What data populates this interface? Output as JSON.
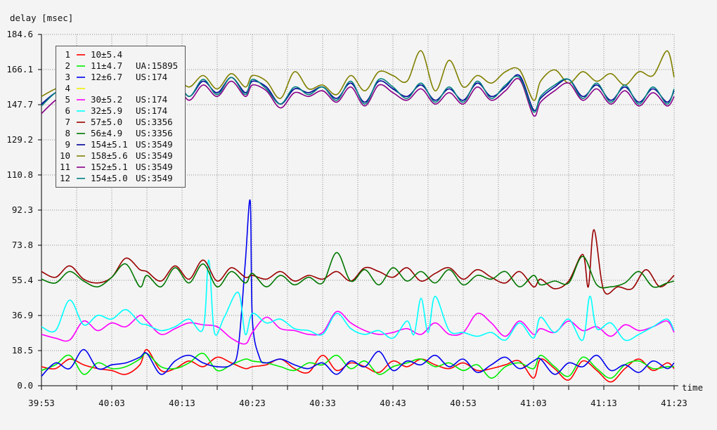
{
  "chart_data": {
    "type": "line",
    "ylabel": "delay [msec]",
    "xlabel": "time",
    "ylim": [
      0,
      184.6
    ],
    "y_ticks": [
      "0.0",
      "18.5",
      "36.9",
      "55.4",
      "73.8",
      "92.3",
      "110.8",
      "129.2",
      "147.7",
      "166.1",
      "184.6"
    ],
    "x_ticks": [
      "39:53",
      "40:03",
      "40:13",
      "40:23",
      "40:33",
      "40:43",
      "40:53",
      "41:03",
      "41:13",
      "41:23"
    ],
    "x_range_seconds": [
      0,
      90
    ],
    "grid": true,
    "legend_position": "top-left",
    "series": [
      {
        "id": "1",
        "stat": "10±5.4",
        "origin": "",
        "color": "#ff0000",
        "x": [
          0,
          2,
          4,
          6,
          8,
          10,
          12,
          14,
          15,
          17,
          19,
          21,
          23,
          25,
          27,
          29,
          30,
          32,
          34,
          36,
          38,
          40,
          42,
          44,
          46,
          48,
          50,
          52,
          54,
          56,
          58,
          60,
          62,
          64,
          66,
          68,
          70,
          71,
          73,
          75,
          77,
          79,
          81,
          83,
          85,
          87,
          89,
          90
        ],
        "values": [
          10,
          9,
          14,
          11,
          9,
          8,
          6,
          11,
          19,
          8,
          9,
          13,
          10,
          15,
          12,
          9,
          10,
          11,
          14,
          9,
          7,
          16,
          8,
          12,
          10,
          7,
          13,
          10,
          14,
          11,
          9,
          12,
          8,
          9,
          11,
          13,
          4,
          14,
          9,
          3,
          13,
          8,
          2,
          9,
          14,
          8,
          12,
          9
        ]
      },
      {
        "id": "2",
        "stat": "11±4.7",
        "origin": "UA:15895",
        "color": "#00ee00",
        "x": [
          0,
          2,
          4,
          6,
          8,
          10,
          12,
          14,
          15,
          17,
          19,
          21,
          23,
          25,
          27,
          29,
          30,
          32,
          34,
          36,
          38,
          40,
          42,
          44,
          46,
          48,
          50,
          52,
          54,
          56,
          58,
          60,
          62,
          64,
          66,
          68,
          70,
          71,
          73,
          75,
          77,
          79,
          81,
          83,
          85,
          87,
          89,
          90
        ],
        "values": [
          8,
          11,
          16,
          6,
          12,
          9,
          10,
          14,
          17,
          10,
          9,
          12,
          17,
          8,
          11,
          14,
          13,
          12,
          10,
          8,
          12,
          11,
          16,
          9,
          13,
          6,
          10,
          12,
          14,
          10,
          12,
          8,
          11,
          4,
          10,
          12,
          9,
          16,
          10,
          5,
          15,
          9,
          4,
          11,
          13,
          9,
          10,
          10
        ]
      },
      {
        "id": "3",
        "stat": "12±6.7",
        "origin": "US:174",
        "color": "#0000ee",
        "x": [
          0,
          2,
          4,
          6,
          8,
          10,
          12,
          14,
          15,
          17,
          19,
          21,
          23,
          25,
          27,
          28,
          29,
          29.7,
          30,
          31,
          32,
          34,
          36,
          38,
          40,
          42,
          44,
          46,
          48,
          50,
          52,
          54,
          56,
          58,
          60,
          62,
          64,
          66,
          68,
          70,
          71,
          73,
          75,
          77,
          79,
          81,
          83,
          85,
          87,
          89,
          90
        ],
        "values": [
          5,
          12,
          9,
          19,
          9,
          11,
          12,
          15,
          17,
          6,
          13,
          16,
          12,
          10,
          11,
          20,
          65,
          97,
          35,
          15,
          12,
          14,
          11,
          9,
          12,
          6,
          13,
          10,
          18,
          8,
          13,
          11,
          16,
          10,
          14,
          7,
          11,
          15,
          9,
          13,
          14,
          6,
          12,
          10,
          16,
          8,
          11,
          7,
          13,
          9,
          12
        ]
      },
      {
        "id": "4",
        "stat": "",
        "origin": "",
        "color": "#eeee00",
        "x": [],
        "values": []
      },
      {
        "id": "5",
        "stat": "30±5.2",
        "origin": "US:174",
        "color": "#ff00ff",
        "x": [
          0,
          2,
          4,
          6,
          8,
          10,
          12,
          14,
          15,
          17,
          19,
          21,
          23,
          25,
          27,
          29,
          30,
          32,
          34,
          36,
          38,
          40,
          42,
          44,
          46,
          48,
          50,
          52,
          54,
          56,
          58,
          60,
          62,
          64,
          66,
          68,
          70,
          71,
          73,
          75,
          77,
          79,
          81,
          83,
          85,
          87,
          89,
          90
        ],
        "values": [
          27,
          25,
          24,
          34,
          29,
          33,
          31,
          37,
          34,
          27,
          30,
          33,
          32,
          31,
          25,
          22,
          28,
          36,
          30,
          29,
          27,
          28,
          39,
          33,
          29,
          27,
          28,
          30,
          27,
          33,
          27,
          28,
          38,
          33,
          26,
          34,
          27,
          30,
          28,
          34,
          29,
          31,
          26,
          32,
          29,
          31,
          34,
          28
        ]
      },
      {
        "id": "6",
        "stat": "32±5.9",
        "origin": "US:174",
        "color": "#00ffff",
        "x": [
          0,
          2,
          4,
          6,
          8,
          10,
          12,
          14,
          15,
          17,
          19,
          21,
          23,
          23.8,
          24.6,
          26,
          28,
          29,
          30,
          32,
          34,
          36,
          38,
          40,
          42,
          44,
          46,
          48,
          50,
          52,
          53,
          54,
          55,
          56,
          58,
          60,
          62,
          64,
          66,
          68,
          70,
          71,
          73,
          75,
          77,
          78,
          79,
          81,
          83,
          85,
          87,
          89,
          90
        ],
        "values": [
          31,
          29,
          45,
          32,
          37,
          35,
          40,
          33,
          32,
          29,
          31,
          35,
          30,
          66,
          28,
          36,
          49,
          27,
          38,
          33,
          35,
          30,
          29,
          27,
          38,
          30,
          27,
          29,
          25,
          34,
          27,
          46,
          28,
          47,
          29,
          28,
          26,
          28,
          24,
          33,
          25,
          36,
          28,
          35,
          24,
          47,
          30,
          33,
          24,
          27,
          31,
          35,
          29
        ]
      },
      {
        "id": "7",
        "stat": "57±5.0",
        "origin": "US:3356",
        "color": "#990000",
        "x": [
          0,
          2,
          4,
          6,
          8,
          10,
          12,
          14,
          15,
          17,
          19,
          21,
          23,
          25,
          27,
          29,
          30,
          32,
          34,
          36,
          38,
          40,
          42,
          44,
          46,
          48,
          50,
          52,
          54,
          56,
          58,
          60,
          62,
          64,
          66,
          68,
          70,
          71,
          73,
          75,
          77,
          77.8,
          78.6,
          80,
          82,
          84,
          86,
          88,
          90
        ],
        "values": [
          60,
          57,
          63,
          56,
          54,
          57,
          67,
          61,
          60,
          55,
          63,
          56,
          66,
          55,
          62,
          57,
          58,
          56,
          60,
          55,
          58,
          56,
          60,
          55,
          62,
          60,
          57,
          62,
          55,
          59,
          62,
          56,
          61,
          57,
          54,
          60,
          52,
          56,
          51,
          55,
          69,
          52,
          82,
          50,
          52,
          51,
          61,
          52,
          58
        ]
      },
      {
        "id": "8",
        "stat": "56±4.9",
        "origin": "US:3356",
        "color": "#007700",
        "x": [
          0,
          2,
          4,
          6,
          8,
          10,
          12,
          14,
          15,
          17,
          19,
          21,
          23,
          25,
          27,
          29,
          30,
          32,
          34,
          36,
          38,
          40,
          42,
          44,
          46,
          48,
          50,
          52,
          54,
          56,
          58,
          60,
          62,
          64,
          66,
          68,
          70,
          71,
          73,
          75,
          77,
          79,
          81,
          83,
          85,
          87,
          89,
          90
        ],
        "values": [
          56,
          54,
          60,
          55,
          52,
          57,
          64,
          52,
          58,
          52,
          62,
          54,
          64,
          52,
          60,
          54,
          59,
          52,
          58,
          53,
          57,
          54,
          70,
          55,
          61,
          53,
          62,
          55,
          60,
          54,
          61,
          53,
          58,
          56,
          60,
          52,
          58,
          53,
          55,
          54,
          68,
          53,
          52,
          54,
          60,
          52,
          54,
          55
        ]
      },
      {
        "id": "9",
        "stat": "154±5.1",
        "origin": "US:3549",
        "color": "#000099",
        "x": [
          0,
          2,
          4,
          6,
          8,
          10,
          12,
          14,
          15,
          17,
          19,
          21,
          23,
          25,
          27,
          29,
          30,
          32,
          34,
          36,
          38,
          40,
          42,
          44,
          46,
          48,
          50,
          52,
          54,
          56,
          58,
          60,
          62,
          64,
          66,
          68,
          70,
          71,
          73,
          75,
          77,
          79,
          81,
          83,
          85,
          87,
          89,
          90
        ],
        "values": [
          148,
          154,
          156,
          151,
          155,
          150,
          158,
          152,
          154,
          148,
          160,
          152,
          160,
          154,
          162,
          154,
          160,
          157,
          148,
          156,
          154,
          157,
          151,
          159,
          149,
          160,
          156,
          152,
          158,
          150,
          156,
          150,
          159,
          152,
          157,
          163,
          145,
          151,
          157,
          161,
          152,
          158,
          150,
          157,
          149,
          156,
          149,
          155
        ]
      },
      {
        "id": "10",
        "stat": "158±5.6",
        "origin": "US:3549",
        "color": "#808000",
        "x": [
          0,
          2,
          4,
          6,
          8,
          10,
          12,
          14,
          15,
          17,
          19,
          21,
          23,
          25,
          27,
          29,
          30,
          32,
          34,
          36,
          38,
          40,
          42,
          44,
          46,
          48,
          50,
          52,
          54,
          56,
          58,
          60,
          62,
          64,
          66,
          68,
          70,
          71,
          73,
          75,
          77,
          79,
          81,
          83,
          85,
          87,
          89,
          90
        ],
        "values": [
          152,
          156,
          158,
          154,
          157,
          152,
          164,
          158,
          155,
          154,
          162,
          157,
          163,
          156,
          164,
          157,
          163,
          160,
          151,
          165,
          156,
          158,
          153,
          163,
          155,
          165,
          163,
          160,
          176,
          155,
          171,
          157,
          163,
          159,
          165,
          166,
          150,
          160,
          166,
          159,
          165,
          160,
          164,
          158,
          165,
          163,
          176,
          162
        ]
      },
      {
        "id": "11",
        "stat": "152±5.1",
        "origin": "US:3549",
        "color": "#880088",
        "x": [
          0,
          2,
          4,
          6,
          8,
          10,
          12,
          14,
          15,
          17,
          19,
          21,
          23,
          25,
          27,
          29,
          30,
          32,
          34,
          36,
          38,
          40,
          42,
          44,
          46,
          48,
          50,
          52,
          54,
          56,
          58,
          60,
          62,
          64,
          66,
          68,
          70,
          71,
          73,
          75,
          77,
          79,
          81,
          83,
          85,
          87,
          89,
          90
        ],
        "values": [
          143,
          150,
          154,
          149,
          153,
          148,
          156,
          150,
          152,
          146,
          158,
          150,
          158,
          152,
          160,
          152,
          158,
          155,
          146,
          154,
          152,
          155,
          149,
          157,
          147,
          158,
          154,
          150,
          156,
          148,
          154,
          148,
          157,
          150,
          155,
          161,
          142,
          149,
          155,
          159,
          150,
          156,
          148,
          155,
          147,
          154,
          147,
          152
        ]
      },
      {
        "id": "12",
        "stat": "154±5.0",
        "origin": "US:3549",
        "color": "#008080",
        "x": [
          0,
          2,
          4,
          6,
          8,
          10,
          12,
          14,
          15,
          17,
          19,
          21,
          23,
          25,
          27,
          29,
          30,
          32,
          34,
          36,
          38,
          40,
          42,
          44,
          46,
          48,
          50,
          52,
          54,
          56,
          58,
          60,
          62,
          64,
          66,
          68,
          70,
          71,
          73,
          75,
          77,
          79,
          81,
          83,
          85,
          87,
          89,
          90
        ],
        "values": [
          147,
          154,
          157,
          150,
          155,
          150,
          159,
          151,
          155,
          147,
          161,
          152,
          161,
          153,
          162,
          153,
          161,
          156,
          148,
          157,
          153,
          157,
          150,
          160,
          148,
          161,
          157,
          151,
          159,
          149,
          157,
          149,
          160,
          151,
          158,
          162,
          144,
          152,
          158,
          161,
          151,
          159,
          149,
          158,
          148,
          157,
          148,
          156
        ]
      }
    ]
  }
}
